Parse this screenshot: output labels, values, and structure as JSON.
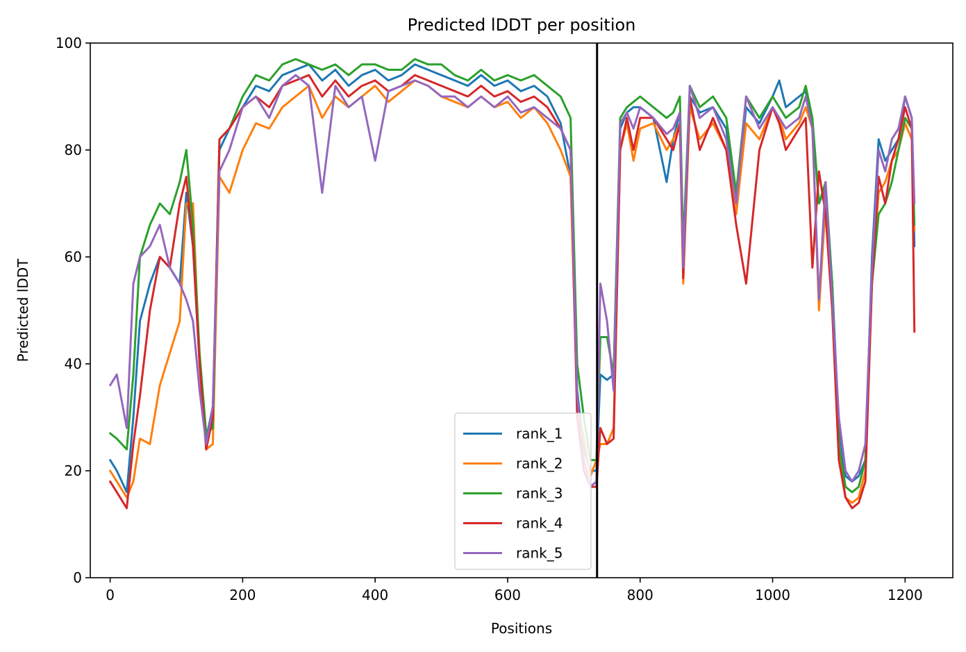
{
  "chart_data": {
    "type": "line",
    "title": "Predicted lDDT per position",
    "xlabel": "Positions",
    "ylabel": "Predicted lDDT",
    "xlim": [
      -30,
      1272
    ],
    "ylim": [
      0,
      100
    ],
    "xticks": [
      0,
      200,
      400,
      600,
      800,
      1000,
      1200
    ],
    "yticks": [
      0,
      20,
      40,
      60,
      80,
      100
    ],
    "vline_x": 735,
    "legend_position": "lower center",
    "grid": false,
    "series": [
      {
        "name": "rank_1",
        "color": "#1f77b4",
        "x": [
          0,
          10,
          25,
          35,
          45,
          60,
          75,
          90,
          105,
          115,
          125,
          135,
          145,
          155,
          165,
          180,
          200,
          220,
          240,
          260,
          280,
          300,
          320,
          340,
          360,
          380,
          400,
          420,
          440,
          460,
          480,
          500,
          520,
          540,
          560,
          580,
          600,
          620,
          640,
          660,
          680,
          695,
          705,
          715,
          725,
          734,
          740,
          750,
          760,
          770,
          780,
          790,
          800,
          820,
          840,
          850,
          860,
          865,
          875,
          890,
          910,
          930,
          945,
          960,
          980,
          1000,
          1010,
          1020,
          1040,
          1050,
          1060,
          1070,
          1080,
          1090,
          1100,
          1110,
          1120,
          1130,
          1140,
          1150,
          1160,
          1170,
          1180,
          1190,
          1200,
          1210,
          1214
        ],
        "values": [
          22,
          20,
          16,
          30,
          48,
          55,
          60,
          58,
          55,
          72,
          62,
          40,
          26,
          32,
          80,
          84,
          88,
          92,
          91,
          94,
          95,
          96,
          93,
          95,
          92,
          94,
          95,
          93,
          94,
          96,
          95,
          94,
          93,
          92,
          94,
          92,
          93,
          91,
          92,
          90,
          85,
          75,
          35,
          24,
          20,
          20,
          38,
          37,
          38,
          84,
          87,
          88,
          88,
          86,
          74,
          82,
          87,
          60,
          90,
          87,
          88,
          84,
          70,
          88,
          85,
          90,
          93,
          88,
          90,
          91,
          85,
          70,
          73,
          55,
          28,
          19,
          18,
          19,
          22,
          60,
          82,
          78,
          80,
          82,
          90,
          86,
          62
        ]
      },
      {
        "name": "rank_2",
        "color": "#ff7f0e",
        "x": [
          0,
          10,
          25,
          35,
          45,
          60,
          75,
          90,
          105,
          115,
          125,
          135,
          145,
          155,
          165,
          180,
          200,
          220,
          240,
          260,
          280,
          300,
          320,
          340,
          360,
          380,
          400,
          420,
          440,
          460,
          480,
          500,
          520,
          540,
          560,
          580,
          600,
          620,
          640,
          660,
          680,
          695,
          705,
          715,
          725,
          734,
          740,
          750,
          760,
          770,
          780,
          790,
          800,
          820,
          840,
          850,
          860,
          865,
          875,
          890,
          910,
          930,
          945,
          960,
          980,
          1000,
          1010,
          1020,
          1040,
          1050,
          1060,
          1070,
          1080,
          1090,
          1100,
          1110,
          1120,
          1130,
          1140,
          1150,
          1160,
          1170,
          1180,
          1190,
          1200,
          1210,
          1214
        ],
        "values": [
          20,
          18,
          15,
          18,
          26,
          25,
          36,
          42,
          48,
          70,
          70,
          40,
          24,
          25,
          75,
          72,
          80,
          85,
          84,
          88,
          90,
          92,
          86,
          90,
          88,
          90,
          92,
          89,
          91,
          93,
          92,
          90,
          89,
          88,
          90,
          88,
          89,
          86,
          88,
          85,
          80,
          75,
          32,
          26,
          19,
          22,
          25,
          25,
          28,
          80,
          85,
          78,
          84,
          85,
          80,
          82,
          85,
          55,
          88,
          82,
          85,
          80,
          68,
          85,
          82,
          88,
          86,
          82,
          85,
          88,
          84,
          50,
          70,
          50,
          24,
          15,
          14,
          15,
          20,
          55,
          72,
          74,
          78,
          80,
          85,
          82,
          65
        ]
      },
      {
        "name": "rank_3",
        "color": "#2ca02c",
        "x": [
          0,
          10,
          25,
          35,
          45,
          60,
          75,
          90,
          105,
          115,
          125,
          135,
          145,
          155,
          165,
          180,
          200,
          220,
          240,
          260,
          280,
          300,
          320,
          340,
          360,
          380,
          400,
          420,
          440,
          460,
          480,
          500,
          520,
          540,
          560,
          580,
          600,
          620,
          640,
          660,
          680,
          695,
          705,
          715,
          725,
          734,
          740,
          750,
          760,
          770,
          780,
          790,
          800,
          820,
          840,
          850,
          860,
          865,
          875,
          890,
          910,
          930,
          945,
          960,
          980,
          1000,
          1010,
          1020,
          1040,
          1050,
          1060,
          1070,
          1080,
          1090,
          1100,
          1110,
          1120,
          1130,
          1140,
          1150,
          1160,
          1170,
          1180,
          1190,
          1200,
          1210,
          1214
        ],
        "values": [
          27,
          26,
          24,
          38,
          60,
          66,
          70,
          68,
          74,
          80,
          66,
          42,
          27,
          28,
          82,
          84,
          90,
          94,
          93,
          96,
          97,
          96,
          95,
          96,
          94,
          96,
          96,
          95,
          95,
          97,
          96,
          96,
          94,
          93,
          95,
          93,
          94,
          93,
          94,
          92,
          90,
          86,
          40,
          30,
          22,
          22,
          45,
          45,
          38,
          86,
          88,
          89,
          90,
          88,
          86,
          87,
          90,
          62,
          92,
          88,
          90,
          86,
          72,
          90,
          86,
          90,
          88,
          86,
          88,
          92,
          86,
          70,
          74,
          55,
          25,
          17,
          16,
          17,
          22,
          55,
          68,
          70,
          74,
          80,
          86,
          84,
          66
        ]
      },
      {
        "name": "rank_4",
        "color": "#d62728",
        "x": [
          0,
          10,
          25,
          35,
          45,
          60,
          75,
          90,
          105,
          115,
          125,
          135,
          145,
          155,
          165,
          180,
          200,
          220,
          240,
          260,
          280,
          300,
          320,
          340,
          360,
          380,
          400,
          420,
          440,
          460,
          480,
          500,
          520,
          540,
          560,
          580,
          600,
          620,
          640,
          660,
          680,
          695,
          705,
          715,
          725,
          734,
          740,
          750,
          760,
          770,
          780,
          790,
          800,
          820,
          840,
          850,
          860,
          865,
          875,
          890,
          910,
          930,
          945,
          960,
          980,
          1000,
          1010,
          1020,
          1040,
          1050,
          1060,
          1070,
          1080,
          1090,
          1100,
          1110,
          1120,
          1130,
          1140,
          1150,
          1160,
          1170,
          1180,
          1190,
          1200,
          1210,
          1214
        ],
        "values": [
          18,
          16,
          13,
          25,
          34,
          50,
          60,
          58,
          70,
          75,
          62,
          40,
          24,
          30,
          82,
          84,
          88,
          90,
          88,
          92,
          93,
          94,
          90,
          93,
          90,
          92,
          93,
          91,
          92,
          94,
          93,
          92,
          91,
          90,
          92,
          90,
          91,
          89,
          90,
          88,
          84,
          80,
          30,
          20,
          17,
          17,
          28,
          25,
          26,
          80,
          86,
          80,
          86,
          86,
          82,
          80,
          85,
          56,
          90,
          80,
          86,
          80,
          66,
          55,
          80,
          88,
          85,
          80,
          84,
          86,
          58,
          76,
          68,
          50,
          22,
          15,
          13,
          14,
          18,
          55,
          75,
          70,
          78,
          82,
          88,
          84,
          46
        ]
      },
      {
        "name": "rank_5",
        "color": "#9467bd",
        "x": [
          0,
          10,
          25,
          35,
          45,
          60,
          75,
          90,
          105,
          115,
          125,
          135,
          145,
          155,
          165,
          180,
          200,
          220,
          240,
          260,
          280,
          300,
          320,
          340,
          360,
          380,
          400,
          420,
          440,
          460,
          480,
          500,
          520,
          540,
          560,
          580,
          600,
          620,
          640,
          660,
          680,
          695,
          705,
          715,
          725,
          734,
          740,
          750,
          760,
          770,
          780,
          790,
          800,
          820,
          840,
          850,
          860,
          865,
          875,
          890,
          910,
          930,
          945,
          960,
          980,
          1000,
          1010,
          1020,
          1040,
          1050,
          1060,
          1070,
          1080,
          1090,
          1100,
          1110,
          1120,
          1130,
          1140,
          1150,
          1160,
          1170,
          1180,
          1190,
          1200,
          1210,
          1214
        ],
        "values": [
          36,
          38,
          28,
          55,
          60,
          62,
          66,
          58,
          55,
          52,
          48,
          35,
          25,
          32,
          76,
          80,
          88,
          90,
          86,
          92,
          94,
          92,
          72,
          92,
          88,
          90,
          78,
          91,
          92,
          93,
          92,
          90,
          90,
          88,
          90,
          88,
          90,
          87,
          88,
          86,
          84,
          80,
          34,
          22,
          17,
          18,
          55,
          48,
          35,
          85,
          87,
          84,
          88,
          86,
          83,
          84,
          87,
          58,
          92,
          86,
          88,
          82,
          70,
          90,
          84,
          88,
          86,
          84,
          86,
          90,
          84,
          52,
          74,
          52,
          30,
          20,
          18,
          20,
          25,
          58,
          80,
          76,
          82,
          84,
          90,
          86,
          70
        ]
      }
    ]
  }
}
